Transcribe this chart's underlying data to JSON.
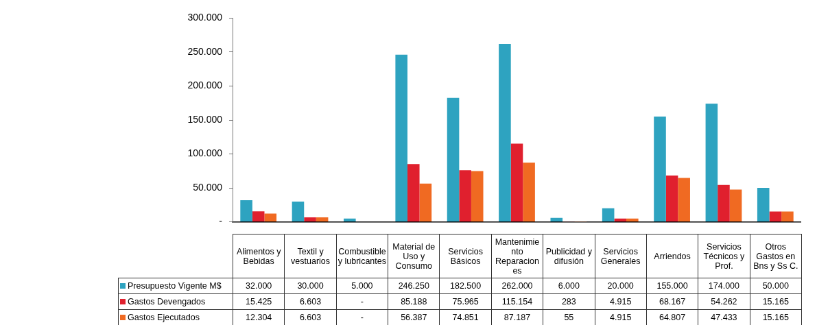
{
  "chart_data": {
    "type": "bar",
    "categories": [
      "Alimentos y Bebidas",
      "Textil y vestuarios",
      "Combustible y lubricantes",
      "Material de Uso y Consumo",
      "Servicios Básicos",
      "Mantenimiento Reparaciones",
      "Publicidad y difusión",
      "Servicios Generales",
      "Arriendos",
      "Servicios Técnicos y Prof.",
      "Otros Gastos en Bns y Ss C."
    ],
    "series": [
      {
        "name": "Presupuesto Vigente M$",
        "color": "#2ea3c0",
        "values": [
          32000,
          30000,
          5000,
          246250,
          182500,
          262000,
          6000,
          20000,
          155000,
          174000,
          50000
        ],
        "value_labels": [
          "32.000",
          "30.000",
          "5.000",
          "246.250",
          "182.500",
          "262.000",
          "6.000",
          "20.000",
          "155.000",
          "174.000",
          "50.000"
        ]
      },
      {
        "name": "Gastos Devengados",
        "color": "#e0202e",
        "values": [
          15425,
          6603,
          0,
          85188,
          75965,
          115154,
          283,
          4915,
          68167,
          54262,
          15165
        ],
        "value_labels": [
          "15.425",
          "6.603",
          "-",
          "85.188",
          "75.965",
          "115.154",
          "283",
          "4.915",
          "68.167",
          "54.262",
          "15.165"
        ]
      },
      {
        "name": "Gastos Ejecutados",
        "color": "#f06a22",
        "values": [
          12304,
          6603,
          0,
          56387,
          74851,
          87187,
          55,
          4915,
          64807,
          47433,
          15165
        ],
        "value_labels": [
          "12.304",
          "6.603",
          "-",
          "56.387",
          "74.851",
          "87.187",
          "55",
          "4.915",
          "64.807",
          "47.433",
          "15.165"
        ]
      }
    ],
    "ylim": [
      0,
      300000
    ],
    "yticks": [
      {
        "value": 0,
        "label": "-"
      },
      {
        "value": 50000,
        "label": "50.000"
      },
      {
        "value": 100000,
        "label": "100.000"
      },
      {
        "value": 150000,
        "label": "150.000"
      },
      {
        "value": 200000,
        "label": "200.000"
      },
      {
        "value": 250000,
        "label": "250.000"
      },
      {
        "value": 300000,
        "label": "300.000"
      }
    ],
    "grid": false,
    "legend": "bottom left"
  }
}
